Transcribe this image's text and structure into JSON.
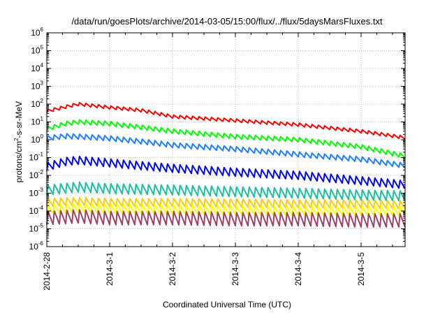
{
  "chart_data": {
    "type": "line",
    "title": "/data/run/goesPlots/archive/2014-03-05/15:00/flux/../flux/5daysMarsFluxes.txt",
    "xlabel": "Coordinated Universal Time (UTC)",
    "ylabel_parts": [
      "protons/cm",
      "2",
      "-s-sr-MeV"
    ],
    "y_scale": "log",
    "ylim": [
      1e-06,
      1000000.0
    ],
    "y_tick_exponents": [
      -6,
      -5,
      -4,
      -3,
      -2,
      -1,
      0,
      1,
      2,
      3,
      4,
      5,
      6
    ],
    "x_ticks": [
      "2014-2-28",
      "2014-3-1",
      "2014-3-2",
      "2014-3-3",
      "2014-3-4",
      "2014-3-5"
    ],
    "x_range_days": [
      0,
      5.7
    ],
    "grid": true,
    "legend": "none",
    "series": [
      {
        "color": "#ff0000",
        "period_days": 0.1,
        "amplitude": 0.18,
        "x": [
          0,
          0.3,
          0.5,
          1.0,
          1.5,
          2.0,
          3.0,
          4.0,
          5.0,
          5.7
        ],
        "y": [
          40,
          70,
          100,
          65,
          45,
          20,
          12,
          7,
          3,
          1.3
        ]
      },
      {
        "color": "#00ff00",
        "period_days": 0.1,
        "amplitude": 0.25,
        "x": [
          0,
          0.3,
          0.5,
          1.0,
          1.5,
          2.0,
          3.0,
          4.0,
          5.0,
          5.7
        ],
        "y": [
          4,
          8,
          10,
          8,
          5,
          3,
          1.5,
          1.0,
          0.4,
          0.12
        ]
      },
      {
        "color": "#1e7fff",
        "period_days": 0.1,
        "amplitude": 0.28,
        "x": [
          0,
          0.3,
          0.5,
          1.0,
          1.5,
          2.0,
          3.0,
          4.0,
          5.0,
          5.7
        ],
        "y": [
          1.2,
          1.6,
          1.5,
          1.2,
          0.8,
          0.5,
          0.3,
          0.15,
          0.08,
          0.035
        ]
      },
      {
        "color": "#0000ff",
        "period_days": 0.1,
        "amplitude": 0.45,
        "x": [
          0,
          0.3,
          0.5,
          1.0,
          1.5,
          2.0,
          3.0,
          4.0,
          5.0,
          5.7
        ],
        "y": [
          0.03,
          0.06,
          0.07,
          0.05,
          0.035,
          0.025,
          0.015,
          0.01,
          0.005,
          0.003
        ]
      },
      {
        "color": "#19c0a0",
        "period_days": 0.1,
        "amplitude": 0.55,
        "x": [
          0,
          0.5,
          1.0,
          2.0,
          3.0,
          4.0,
          5.0,
          5.7
        ],
        "y": [
          0.0015,
          0.0022,
          0.0018,
          0.0015,
          0.0012,
          0.001,
          0.0008,
          0.0007
        ]
      },
      {
        "color": "#ffcc00",
        "period_days": 0.1,
        "amplitude": 0.45,
        "x": [
          0,
          0.5,
          1.0,
          2.0,
          3.0,
          4.0,
          5.0,
          5.7
        ],
        "y": [
          0.0003,
          0.00035,
          0.0003,
          0.0003,
          0.00028,
          0.00025,
          0.00025,
          0.00022
        ]
      },
      {
        "color": "#ffff00",
        "period_days": 0.1,
        "amplitude": 0.5,
        "x": [
          0,
          0.5,
          1.0,
          2.0,
          3.0,
          4.0,
          5.0,
          5.7
        ],
        "y": [
          0.00012,
          0.00015,
          0.00013,
          0.00012,
          0.00011,
          0.0001,
          0.0001,
          0.0001
        ]
      },
      {
        "color": "#a0406a",
        "period_days": 0.1,
        "amplitude": 0.75,
        "x": [
          0,
          0.5,
          1.0,
          2.0,
          3.0,
          4.0,
          5.0,
          5.7
        ],
        "y": [
          4e-05,
          5e-05,
          4e-05,
          4e-05,
          3.5e-05,
          3.5e-05,
          3e-05,
          3e-05
        ]
      }
    ]
  }
}
